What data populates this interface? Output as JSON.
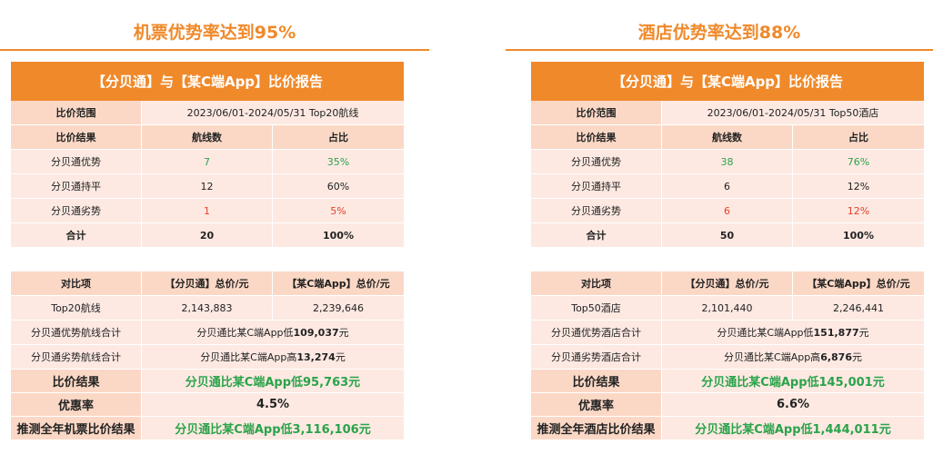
{
  "left": {
    "heading": "机票优势率达到95%",
    "report_title": "【分贝通】与【某C端App】比价报告",
    "range_label": "比价范围",
    "range_value": "2023/06/01-2024/05/31 Top20航线",
    "result_header": [
      "比价结果",
      "航线数",
      "占比"
    ],
    "rows": [
      {
        "label": "分贝通优势",
        "count": "7",
        "pct": "35%"
      },
      {
        "label": "分贝通持平",
        "count": "12",
        "pct": "60%"
      },
      {
        "label": "分贝通劣势",
        "count": "1",
        "pct": "5%"
      },
      {
        "label": "合计",
        "count": "20",
        "pct": "100%"
      }
    ],
    "compare_header": [
      "对比项",
      "【分贝通】总价/元",
      "【某C端App】总价/元"
    ],
    "compare_top": {
      "label": "Top20航线",
      "a": "2,143,883",
      "b": "2,239,646"
    },
    "adv_label": "分贝通优势航线合计",
    "adv_prefix": "分贝通比某C端App低",
    "adv_value": "109,037",
    "adv_suffix": "元",
    "dis_label": "分贝通劣势航线合计",
    "dis_prefix": "分贝通比某C端App高",
    "dis_value": "13,274",
    "dis_suffix": "元",
    "result_label": "比价结果",
    "result_value": "分贝通比某C端App低95,763元",
    "rate_label": "优惠率",
    "rate_value": "4.5%",
    "annual_label": "推测全年机票比价结果",
    "annual_value": "分贝通比某C端App低3,116,106元"
  },
  "right": {
    "heading": "酒店优势率达到88%",
    "report_title": "【分贝通】与【某C端App】比价报告",
    "range_label": "比价范围",
    "range_value": "2023/06/01-2024/05/31 Top50酒店",
    "result_header": [
      "比价结果",
      "航线数",
      "占比"
    ],
    "rows": [
      {
        "label": "分贝通优势",
        "count": "38",
        "pct": "76%"
      },
      {
        "label": "分贝通持平",
        "count": "6",
        "pct": "12%"
      },
      {
        "label": "分贝通劣势",
        "count": "6",
        "pct": "12%"
      },
      {
        "label": "合计",
        "count": "50",
        "pct": "100%"
      }
    ],
    "compare_header": [
      "对比项",
      "【分贝通】总价/元",
      "【某C端App】总价/元"
    ],
    "compare_top": {
      "label": "Top50酒店",
      "a": "2,101,440",
      "b": "2,246,441"
    },
    "adv_label": "分贝通优势酒店合计",
    "adv_prefix": "分贝通比某C端App低",
    "adv_value": "151,877",
    "adv_suffix": "元",
    "dis_label": "分贝通劣势酒店合计",
    "dis_prefix": "分贝通比某C端App高",
    "dis_value": "6,876",
    "dis_suffix": "元",
    "result_label": "比价结果",
    "result_value": "分贝通比某C端App低145,001元",
    "rate_label": "优惠率",
    "rate_value": "6.6%",
    "annual_label": "推测全年酒店比价结果",
    "annual_value": "分贝通比某C端App低1,444,011元"
  },
  "colors": {
    "accent": "#f0892a",
    "peach": "#fbd8c6",
    "pink": "#fde9e2",
    "green": "#2aa34a",
    "red": "#e3412a"
  }
}
